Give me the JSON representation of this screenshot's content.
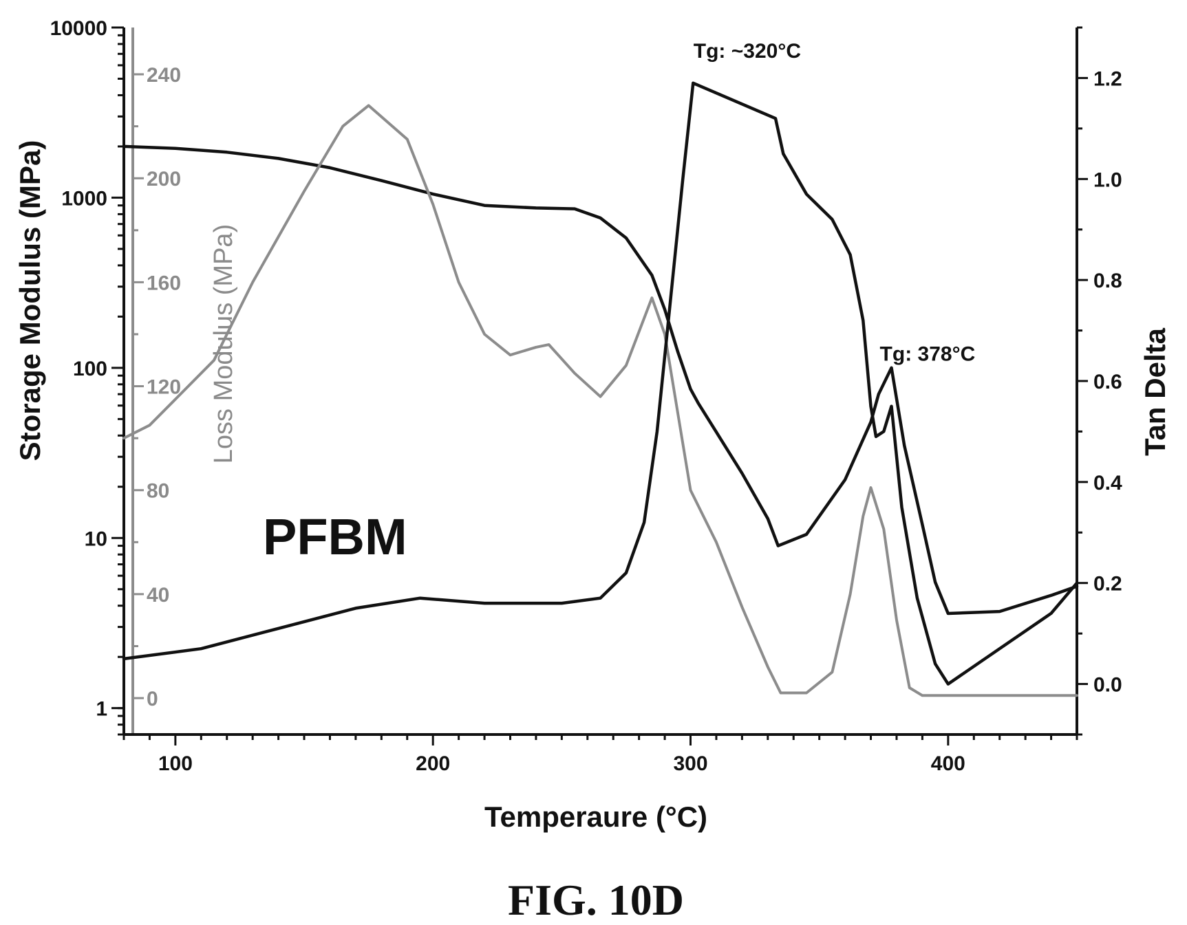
{
  "figure_label": "FIG. 10D",
  "sample_label": "PFBM",
  "chart_data": {
    "type": "line",
    "title": "",
    "xlabel": "Temperaure (°C)",
    "xlim": [
      80,
      450
    ],
    "x_ticks": [
      "100",
      "200",
      "300",
      "400"
    ],
    "y_left": {
      "label": "Storage Modulus (MPa)",
      "scale": "log",
      "lim": [
        0.7,
        10000
      ],
      "ticks": [
        "1",
        "10",
        "100",
        "1000",
        "10000"
      ]
    },
    "y_loss": {
      "label": "Loss Modulus (MPa)",
      "lim": [
        -14,
        258
      ],
      "ticks": [
        "0",
        "40",
        "80",
        "120",
        "160",
        "200",
        "240"
      ]
    },
    "y_right": {
      "label": "Tan Delta",
      "lim": [
        -0.1,
        1.3
      ],
      "ticks": [
        "0.0",
        "0.2",
        "0.4",
        "0.6",
        "0.8",
        "1.0",
        "1.2"
      ]
    },
    "annotations": [
      {
        "text": "Tg: ~320°C",
        "x": 322,
        "y_tan": 1.24
      },
      {
        "text": "Tg: 378°C",
        "x": 392,
        "y_tan": 0.64
      }
    ],
    "colors": {
      "storage": "#111111",
      "loss": "#8c8c8c",
      "tan": "#111111"
    },
    "series": [
      {
        "axis": "storage",
        "points": [
          [
            80,
            2000
          ],
          [
            100,
            1950
          ],
          [
            120,
            1850
          ],
          [
            140,
            1700
          ],
          [
            160,
            1500
          ],
          [
            180,
            1260
          ],
          [
            200,
            1050
          ],
          [
            220,
            900
          ],
          [
            240,
            870
          ],
          [
            255,
            860
          ],
          [
            265,
            760
          ],
          [
            275,
            580
          ],
          [
            285,
            350
          ],
          [
            290,
            220
          ],
          [
            295,
            125
          ],
          [
            300,
            75
          ],
          [
            303,
            62
          ],
          [
            310,
            42
          ],
          [
            320,
            24
          ],
          [
            330,
            13
          ],
          [
            334,
            9
          ],
          [
            345,
            10.5
          ],
          [
            360,
            22
          ],
          [
            370,
            48
          ],
          [
            373,
            70
          ],
          [
            378,
            100
          ],
          [
            383,
            35
          ],
          [
            390,
            12
          ],
          [
            395,
            5.5
          ],
          [
            400,
            3.6
          ],
          [
            420,
            3.7
          ],
          [
            440,
            4.6
          ],
          [
            450,
            5.2
          ]
        ]
      },
      {
        "axis": "loss",
        "points": [
          [
            80,
            100
          ],
          [
            90,
            105
          ],
          [
            100,
            115
          ],
          [
            115,
            130
          ],
          [
            130,
            160
          ],
          [
            150,
            195
          ],
          [
            165,
            220
          ],
          [
            175,
            228
          ],
          [
            190,
            215
          ],
          [
            200,
            190
          ],
          [
            210,
            160
          ],
          [
            220,
            140
          ],
          [
            230,
            132
          ],
          [
            240,
            135
          ],
          [
            245,
            136
          ],
          [
            255,
            125
          ],
          [
            265,
            116
          ],
          [
            275,
            128
          ],
          [
            285,
            154
          ],
          [
            290,
            140
          ],
          [
            295,
            110
          ],
          [
            300,
            80
          ],
          [
            310,
            60
          ],
          [
            320,
            35
          ],
          [
            330,
            12
          ],
          [
            335,
            2
          ],
          [
            345,
            2
          ],
          [
            355,
            10
          ],
          [
            362,
            40
          ],
          [
            367,
            70
          ],
          [
            370,
            81
          ],
          [
            375,
            65
          ],
          [
            380,
            30
          ],
          [
            385,
            4
          ],
          [
            390,
            1
          ],
          [
            450,
            1
          ]
        ]
      },
      {
        "axis": "tan",
        "points": [
          [
            80,
            0.05
          ],
          [
            110,
            0.07
          ],
          [
            140,
            0.11
          ],
          [
            170,
            0.15
          ],
          [
            195,
            0.17
          ],
          [
            220,
            0.16
          ],
          [
            250,
            0.16
          ],
          [
            265,
            0.17
          ],
          [
            275,
            0.22
          ],
          [
            282,
            0.32
          ],
          [
            287,
            0.5
          ],
          [
            292,
            0.75
          ],
          [
            297,
            1.0
          ],
          [
            301,
            1.19
          ],
          [
            333,
            1.12
          ],
          [
            336,
            1.05
          ],
          [
            345,
            0.97
          ],
          [
            355,
            0.92
          ],
          [
            362,
            0.85
          ],
          [
            367,
            0.72
          ],
          [
            370,
            0.55
          ],
          [
            372,
            0.49
          ],
          [
            375,
            0.5
          ],
          [
            378,
            0.55
          ],
          [
            382,
            0.35
          ],
          [
            388,
            0.17
          ],
          [
            395,
            0.04
          ],
          [
            400,
            0.0
          ],
          [
            420,
            0.07
          ],
          [
            440,
            0.14
          ],
          [
            450,
            0.2
          ]
        ]
      }
    ]
  }
}
